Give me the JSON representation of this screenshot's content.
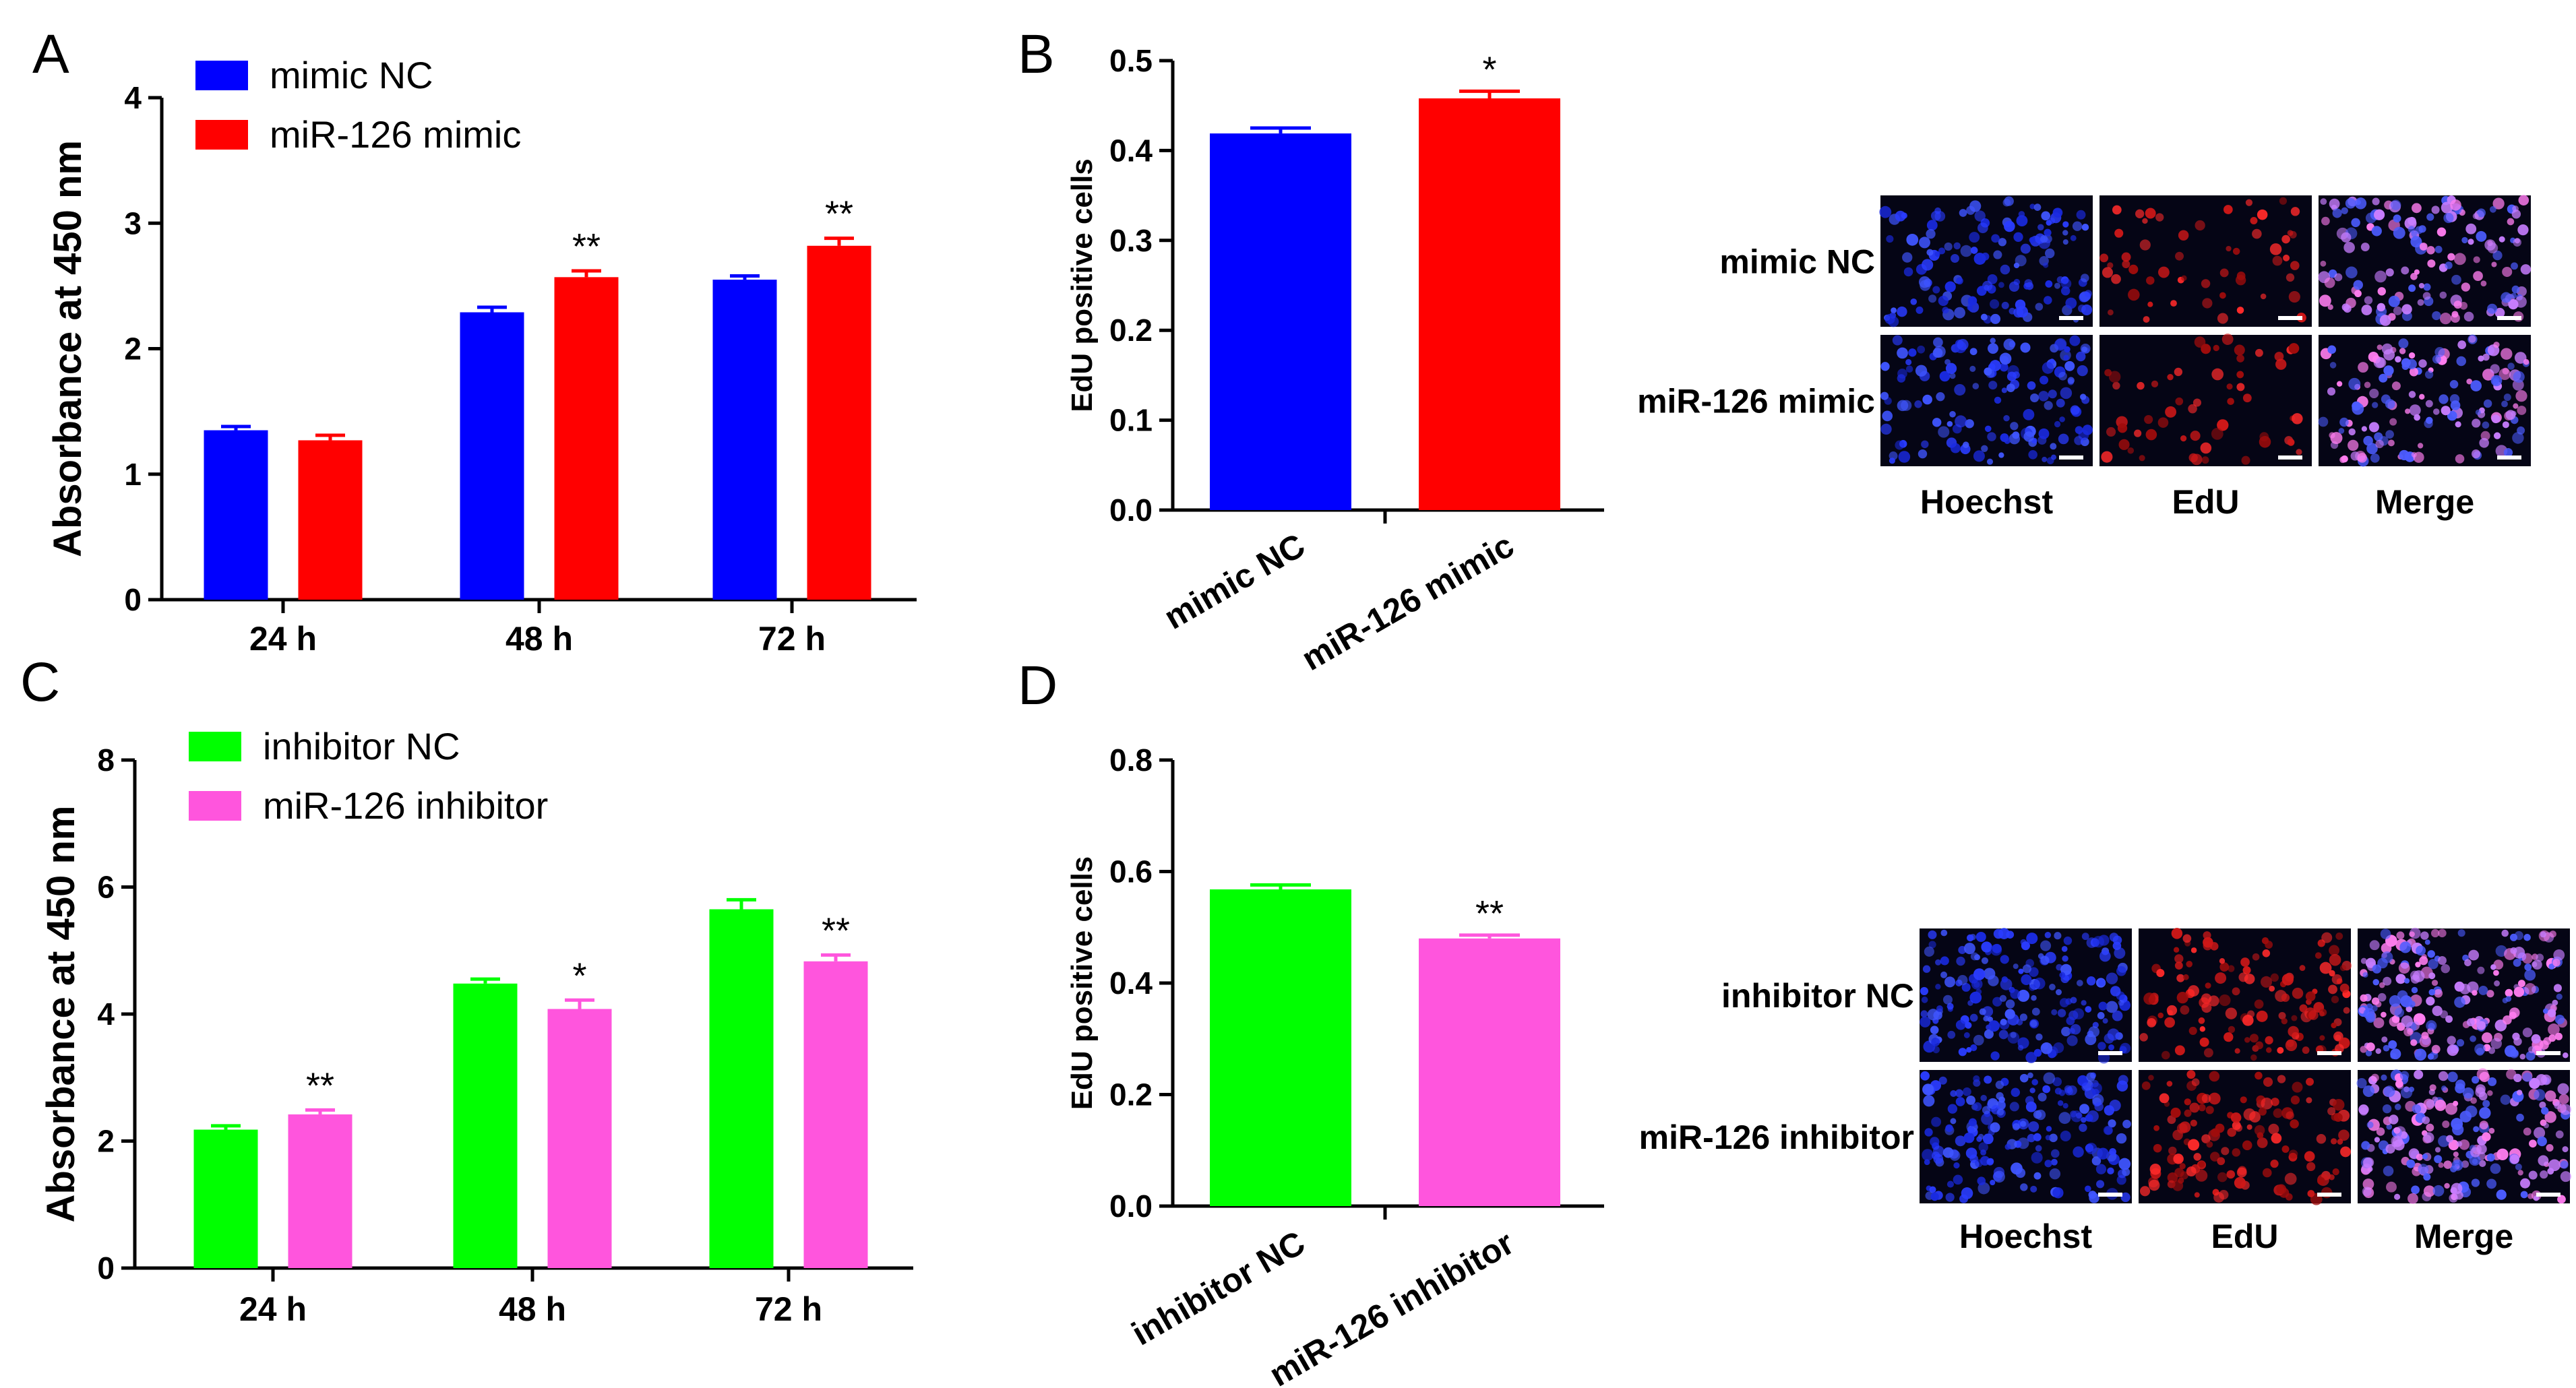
{
  "colors": {
    "blue": "#0000FF",
    "red": "#FF0000",
    "green": "#00FF00",
    "magenta": "#FF55DD",
    "micro_bg": "#050515"
  },
  "panels": {
    "A": {
      "letter": "A"
    },
    "B": {
      "letter": "B"
    },
    "C": {
      "letter": "C"
    },
    "D": {
      "letter": "D"
    }
  },
  "images_B": {
    "rows": [
      "mimic NC",
      "miR-126 mimic"
    ],
    "cols": [
      "Hoechst",
      "EdU",
      "Merge"
    ]
  },
  "images_D": {
    "rows": [
      "inhibitor NC",
      "miR-126 inhibitor"
    ],
    "cols": [
      "Hoechst",
      "EdU",
      "Merge"
    ]
  },
  "chart_data": [
    {
      "panel": "A",
      "type": "bar",
      "categories": [
        "24 h",
        "48 h",
        "72 h"
      ],
      "series": [
        {
          "name": "mimic NC",
          "color": "#0000FF",
          "values": [
            1.35,
            2.29,
            2.55
          ],
          "errors": [
            0.03,
            0.04,
            0.03
          ]
        },
        {
          "name": "miR-126 mimic",
          "color": "#FF0000",
          "values": [
            1.27,
            2.57,
            2.82
          ],
          "errors": [
            0.04,
            0.05,
            0.06
          ]
        }
      ],
      "significance": [
        [
          "",
          ""
        ],
        [
          "",
          "**"
        ],
        [
          "",
          "**"
        ]
      ],
      "ylabel": "Absorbance at 450 nm",
      "ylim": [
        0,
        4
      ],
      "yticks": [
        "0",
        "1",
        "2",
        "3",
        "4"
      ],
      "legend": "top-left"
    },
    {
      "panel": "B",
      "type": "bar",
      "categories": [
        "mimic NC",
        "miR-126 mimic"
      ],
      "colors": [
        "#0000FF",
        "#FF0000"
      ],
      "values": [
        0.419,
        0.458
      ],
      "errors": [
        0.006,
        0.008
      ],
      "significance": [
        "",
        "*"
      ],
      "ylabel": "EdU positive cells",
      "ylim": [
        0,
        0.5
      ],
      "yticks": [
        "0.0",
        "0.1",
        "0.2",
        "0.3",
        "0.4",
        "0.5"
      ]
    },
    {
      "panel": "C",
      "type": "bar",
      "categories": [
        "24 h",
        "48 h",
        "72 h"
      ],
      "series": [
        {
          "name": "inhibitor NC",
          "color": "#00FF00",
          "values": [
            2.18,
            4.48,
            5.65
          ],
          "errors": [
            0.06,
            0.07,
            0.15
          ]
        },
        {
          "name": "miR-126 inhibitor",
          "color": "#FF55DD",
          "values": [
            2.42,
            4.08,
            4.83
          ],
          "errors": [
            0.07,
            0.14,
            0.1
          ]
        }
      ],
      "significance": [
        [
          "",
          "**"
        ],
        [
          "",
          "*"
        ],
        [
          "",
          "**"
        ]
      ],
      "ylabel": "Absorbance at 450 nm",
      "ylim": [
        0,
        8
      ],
      "yticks": [
        "0",
        "2",
        "4",
        "6",
        "8"
      ],
      "legend": "top-left"
    },
    {
      "panel": "D",
      "type": "bar",
      "categories": [
        "inhibitor NC",
        "miR-126 inhibitor"
      ],
      "colors": [
        "#00FF00",
        "#FF55DD"
      ],
      "values": [
        0.568,
        0.48
      ],
      "errors": [
        0.008,
        0.006
      ],
      "significance": [
        "",
        "**"
      ],
      "ylabel": "EdU positive cells",
      "ylim": [
        0,
        0.8
      ],
      "yticks": [
        "0.0",
        "0.2",
        "0.4",
        "0.6",
        "0.8"
      ]
    }
  ]
}
